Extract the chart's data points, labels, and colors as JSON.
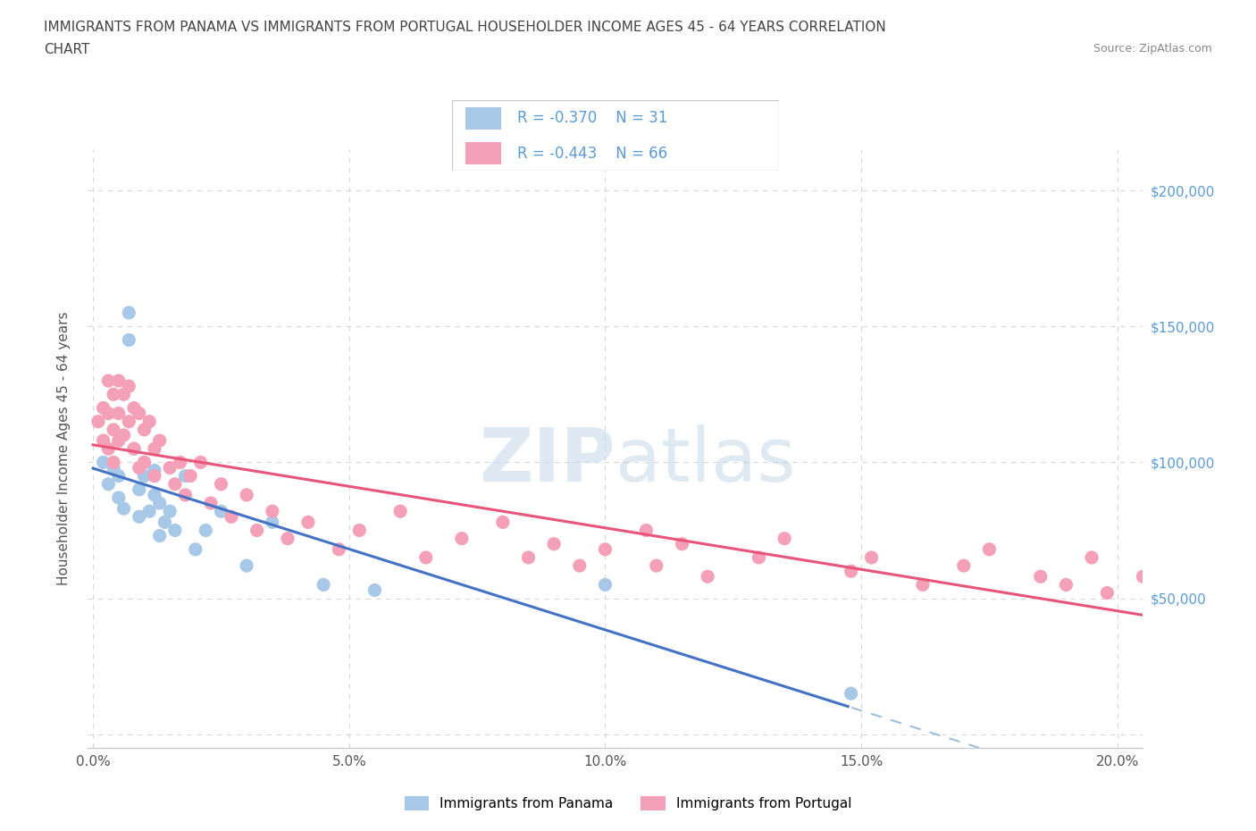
{
  "title_line1": "IMMIGRANTS FROM PANAMA VS IMMIGRANTS FROM PORTUGAL HOUSEHOLDER INCOME AGES 45 - 64 YEARS CORRELATION",
  "title_line2": "CHART",
  "source_text": "Source: ZipAtlas.com",
  "ylabel": "Householder Income Ages 45 - 64 years",
  "xlim": [
    -0.001,
    0.205
  ],
  "ylim": [
    -5000,
    215000
  ],
  "yticks": [
    0,
    50000,
    100000,
    150000,
    200000
  ],
  "right_ytick_labels": [
    "",
    "$50,000",
    "$100,000",
    "$150,000",
    "$200,000"
  ],
  "xticks": [
    0.0,
    0.05,
    0.1,
    0.15,
    0.2
  ],
  "xtick_labels": [
    "0.0%",
    "5.0%",
    "10.0%",
    "15.0%",
    "20.0%"
  ],
  "panama_R": -0.37,
  "panama_N": 31,
  "portugal_R": -0.443,
  "portugal_N": 66,
  "panama_color": "#a8c8e8",
  "portugal_color": "#f4a0b8",
  "panama_line_color": "#4472c4",
  "portugal_line_color": "#e8547a",
  "trend_line_dashed_color": "#a0c0d8",
  "watermark_color": "#d0dce8",
  "panama_scatter_x": [
    0.002,
    0.003,
    0.004,
    0.005,
    0.005,
    0.006,
    0.007,
    0.007,
    0.008,
    0.009,
    0.009,
    0.01,
    0.01,
    0.011,
    0.012,
    0.012,
    0.013,
    0.013,
    0.014,
    0.015,
    0.016,
    0.018,
    0.02,
    0.022,
    0.025,
    0.03,
    0.035,
    0.045,
    0.055,
    0.1,
    0.148
  ],
  "panama_scatter_y": [
    100000,
    92000,
    98000,
    87000,
    95000,
    83000,
    155000,
    145000,
    105000,
    80000,
    90000,
    100000,
    95000,
    82000,
    97000,
    88000,
    73000,
    85000,
    78000,
    82000,
    75000,
    95000,
    68000,
    75000,
    82000,
    62000,
    78000,
    55000,
    53000,
    55000,
    15000
  ],
  "portugal_scatter_x": [
    0.001,
    0.002,
    0.002,
    0.003,
    0.003,
    0.003,
    0.004,
    0.004,
    0.004,
    0.005,
    0.005,
    0.005,
    0.006,
    0.006,
    0.007,
    0.007,
    0.008,
    0.008,
    0.009,
    0.009,
    0.01,
    0.01,
    0.011,
    0.012,
    0.012,
    0.013,
    0.015,
    0.016,
    0.017,
    0.018,
    0.019,
    0.021,
    0.023,
    0.025,
    0.027,
    0.03,
    0.032,
    0.035,
    0.038,
    0.042,
    0.048,
    0.052,
    0.06,
    0.065,
    0.072,
    0.08,
    0.085,
    0.09,
    0.095,
    0.1,
    0.108,
    0.11,
    0.115,
    0.12,
    0.13,
    0.135,
    0.148,
    0.152,
    0.162,
    0.17,
    0.175,
    0.185,
    0.19,
    0.195,
    0.198,
    0.205
  ],
  "portugal_scatter_y": [
    115000,
    120000,
    108000,
    130000,
    118000,
    105000,
    125000,
    112000,
    100000,
    130000,
    118000,
    108000,
    125000,
    110000,
    128000,
    115000,
    120000,
    105000,
    118000,
    98000,
    112000,
    100000,
    115000,
    105000,
    95000,
    108000,
    98000,
    92000,
    100000,
    88000,
    95000,
    100000,
    85000,
    92000,
    80000,
    88000,
    75000,
    82000,
    72000,
    78000,
    68000,
    75000,
    82000,
    65000,
    72000,
    78000,
    65000,
    70000,
    62000,
    68000,
    75000,
    62000,
    70000,
    58000,
    65000,
    72000,
    60000,
    65000,
    55000,
    62000,
    68000,
    58000,
    55000,
    65000,
    52000,
    58000
  ],
  "background_color": "#ffffff",
  "grid_color": "#d8d8d8",
  "right_label_color": "#5b9bd5",
  "axis_label_color": "#555555",
  "legend_text_color": "#5b9bd5",
  "title_color": "#444444",
  "source_color": "#888888"
}
